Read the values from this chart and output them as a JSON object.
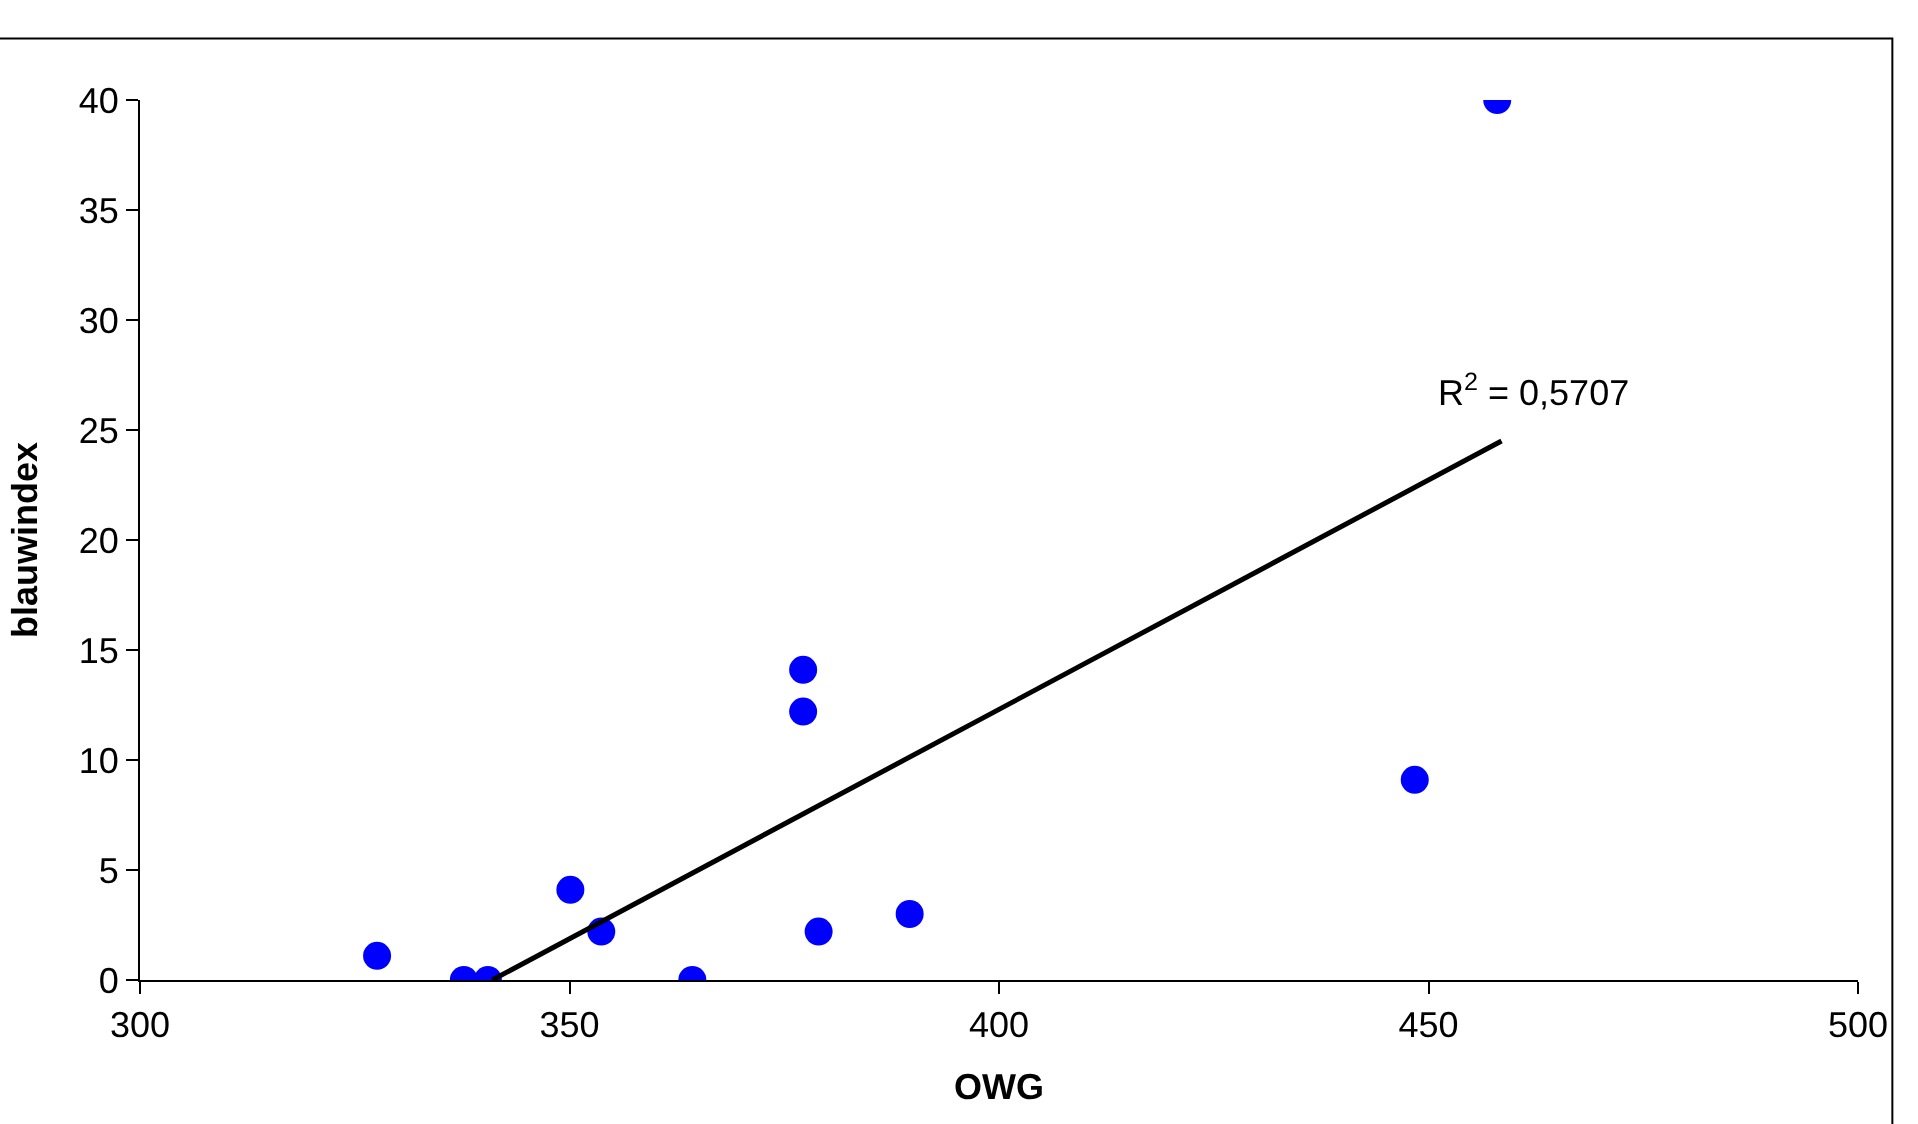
{
  "chart_data": {
    "type": "scatter",
    "xlabel": "OWG",
    "ylabel": "blauwindex",
    "xlim": [
      300,
      500
    ],
    "xticks": [
      300,
      350,
      400,
      450,
      500
    ],
    "ylim": [
      0,
      40
    ],
    "yticks": [
      0,
      5,
      10,
      15,
      20,
      25,
      30,
      35,
      40
    ],
    "grid": false,
    "legend": false,
    "series": [
      {
        "marker": "circle",
        "color": "#0000ff",
        "x": [
          327.6,
          337.7,
          340.5,
          350.1,
          353.7,
          364.3,
          377.2,
          377.2,
          379.0,
          389.6,
          448.4,
          458.0
        ],
        "values": [
          1.1,
          0,
          0,
          4.1,
          2.2,
          0,
          14.1,
          12.2,
          2.2,
          3.0,
          9.1,
          40
        ]
      },
      {
        "type": "line",
        "color": "#000000",
        "x": [
          341,
          458.5
        ],
        "values": [
          0,
          24.5
        ]
      }
    ],
    "annotations": [
      "R$^{2}$ = 0,5707"
    ]
  }
}
